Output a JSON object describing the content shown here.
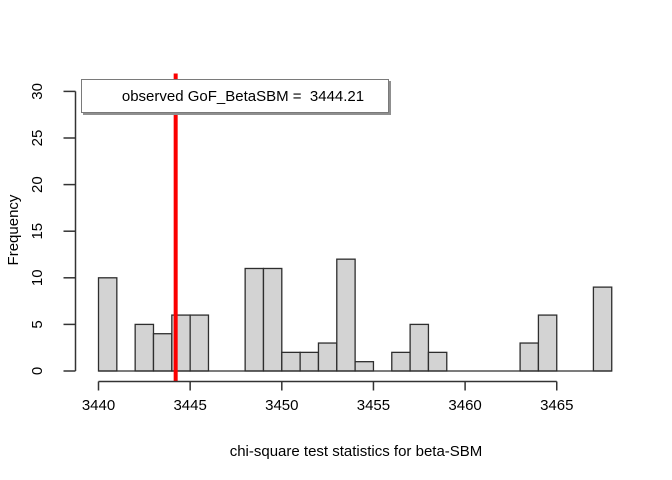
{
  "figure": {
    "background": "#ffffff",
    "axis_color": "#333333",
    "text_color": "#000000"
  },
  "legend": {
    "label": "observed GoF_BetaSBM =  3444.21",
    "border_color": "#7a7a7a",
    "shadow_color": "#8f8f8f",
    "background": "#ffffff",
    "position": "topleft"
  },
  "chart_data": {
    "type": "bar",
    "subtype": "histogram",
    "title": "",
    "xlabel": "chi-square test statistics for beta-SBM",
    "ylabel": "Frequency",
    "x_ticks": [
      3440,
      3445,
      3450,
      3455,
      3460,
      3465
    ],
    "y_ticks": [
      0,
      5,
      10,
      15,
      20,
      25,
      30
    ],
    "xlim": [
      3440,
      3468
    ],
    "ylim": [
      0,
      30
    ],
    "grid": false,
    "bin_start": 3440,
    "bin_width": 1,
    "counts": [
      10,
      0,
      5,
      4,
      6,
      6,
      0,
      0,
      11,
      11,
      2,
      2,
      3,
      12,
      1,
      0,
      2,
      5,
      2,
      0,
      0,
      0,
      0,
      3,
      6,
      0,
      0,
      9
    ],
    "bar_fill": "#d3d3d3",
    "bar_border": "#2e2e2e",
    "observed_line": {
      "value": 3444.21,
      "color": "#fb0000",
      "label": "observed GoF_BetaSBM =  3444.21"
    }
  }
}
